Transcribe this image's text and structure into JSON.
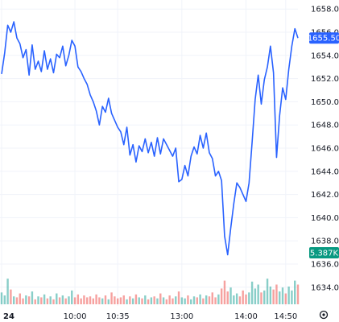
{
  "colors": {
    "line": "#2962ff",
    "price_badge_bg": "#2962ff",
    "price_badge_text": "#ffffff",
    "volume_badge_bg": "#089981",
    "volume_badge_text": "#ffffff",
    "volume_up": "#26a69a",
    "volume_down": "#ef5350",
    "grid": "#f0f3fa",
    "axis_text": "#131722"
  },
  "chart_data": {
    "type": "line",
    "title": "",
    "xlabel": "",
    "ylabel": "",
    "ylim": [
      1633.0,
      1659.5
    ],
    "grid": true,
    "y_ticks": [
      "1658.00",
      "1656.00",
      "1654.00",
      "1652.00",
      "1650.00",
      "1648.00",
      "1646.00",
      "1644.00",
      "1642.00",
      "1640.00",
      "1638.00",
      "1636.00",
      "1634.00"
    ],
    "x_ticks": [
      {
        "label": "24",
        "bar": 0
      },
      {
        "label": "10:00",
        "bar": 24
      },
      {
        "label": "10:35",
        "bar": 38
      },
      {
        "label": "13:00",
        "bar": 59
      },
      {
        "label": "14:00",
        "bar": 80
      },
      {
        "label": "14:50",
        "bar": 93
      }
    ],
    "current_price": "1655.50",
    "current_volume": "5.387K",
    "series": [
      {
        "values": [
          1652.4,
          1654.2,
          1656.6,
          1656.0,
          1656.9,
          1655.5,
          1655.0,
          1653.8,
          1654.5,
          1652.3,
          1654.9,
          1652.8,
          1653.5,
          1652.6,
          1654.4,
          1652.8,
          1653.7,
          1652.5,
          1654.1,
          1653.8,
          1654.8,
          1653.1,
          1654.0,
          1655.3,
          1654.8,
          1653.0,
          1652.6,
          1652.0,
          1651.5,
          1650.6,
          1650.0,
          1649.2,
          1648.0,
          1649.6,
          1649.1,
          1650.3,
          1649.0,
          1648.4,
          1647.8,
          1647.4,
          1646.3,
          1647.8,
          1645.4,
          1646.3,
          1644.8,
          1646.2,
          1645.7,
          1646.8,
          1645.6,
          1646.5,
          1645.3,
          1646.9,
          1645.5,
          1646.8,
          1646.3,
          1645.8,
          1645.3,
          1646.0,
          1643.1,
          1643.3,
          1644.5,
          1643.6,
          1645.3,
          1646.1,
          1645.5,
          1647.1,
          1646.0,
          1647.3,
          1645.6,
          1645.1,
          1643.6,
          1644.0,
          1643.2,
          1638.4,
          1636.8,
          1639.1,
          1641.2,
          1643.0,
          1642.6,
          1642.0,
          1641.4,
          1643.0,
          1646.5,
          1650.2,
          1652.3,
          1649.8,
          1651.9,
          1653.0,
          1654.8,
          1652.5,
          1645.2,
          1648.8,
          1651.2,
          1650.2,
          1652.8,
          1654.8,
          1656.3,
          1655.5
        ]
      }
    ],
    "volume": {
      "scale_max": 5.387,
      "values": [
        1.2,
        0.9,
        2.6,
        1.5,
        0.8,
        0.7,
        1.1,
        0.6,
        0.9,
        0.8,
        1.3,
        0.5,
        0.8,
        0.7,
        1.0,
        0.6,
        0.8,
        0.5,
        1.1,
        0.7,
        0.9,
        0.6,
        0.8,
        1.4,
        0.7,
        1.0,
        0.6,
        0.9,
        0.7,
        0.8,
        0.6,
        1.0,
        0.7,
        0.6,
        0.9,
        0.5,
        1.2,
        0.8,
        0.6,
        0.7,
        0.9,
        0.5,
        0.8,
        0.6,
        1.0,
        0.7,
        0.6,
        0.9,
        0.5,
        0.7,
        0.8,
        0.6,
        1.1,
        0.7,
        0.5,
        0.9,
        0.6,
        0.8,
        1.3,
        0.7,
        0.6,
        0.9,
        0.5,
        0.8,
        0.7,
        1.0,
        0.6,
        0.9,
        0.8,
        1.2,
        0.7,
        1.0,
        1.6,
        2.4,
        1.3,
        1.7,
        0.9,
        1.1,
        0.8,
        1.4,
        1.0,
        1.2,
        2.3,
        1.6,
        2.0,
        1.2,
        1.4,
        2.6,
        1.8,
        1.5,
        2.0,
        1.3,
        1.7,
        1.1,
        1.8,
        1.4,
        2.4,
        2.0
      ]
    }
  }
}
